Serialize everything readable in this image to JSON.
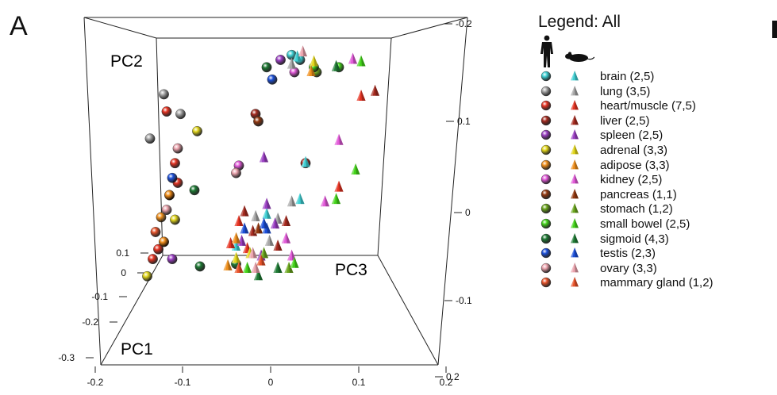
{
  "panel_letter": "A",
  "legend": {
    "title": "Legend: All",
    "human_icon": "human-silhouette-icon",
    "mouse_icon": "mouse-silhouette-icon",
    "entries": [
      {
        "label": "brain (2,5)",
        "color": "#3fd0d4"
      },
      {
        "label": "lung (3,5)",
        "color": "#a6a6a6"
      },
      {
        "label": "heart/muscle (7,5)",
        "color": "#e53322"
      },
      {
        "label": "liver (2,5)",
        "color": "#a52a1f"
      },
      {
        "label": "spleen (2,5)",
        "color": "#9b3fc4"
      },
      {
        "label": "adrenal (3,3)",
        "color": "#e2d61b"
      },
      {
        "label": "adipose (3,3)",
        "color": "#ef8f1c"
      },
      {
        "label": "kidney (2,5)",
        "color": "#e159d8"
      },
      {
        "label": "pancreas (1,1)",
        "color": "#93380f"
      },
      {
        "label": "stomach (1,2)",
        "color": "#6aa51c"
      },
      {
        "label": "small bowel (2,5)",
        "color": "#44d41a"
      },
      {
        "label": "sigmoid (4,3)",
        "color": "#1e7a34"
      },
      {
        "label": "testis (2,3)",
        "color": "#1c4fd9"
      },
      {
        "label": "ovary (3,3)",
        "color": "#eba3ad"
      },
      {
        "label": "mammary gland (1,2)",
        "color": "#e8532a"
      }
    ]
  },
  "chart_data": {
    "type": "scatter",
    "axis_labels": {
      "pc1": "PC1",
      "pc2": "PC2",
      "pc3": "PC3"
    },
    "ticks": {
      "bottom": [
        "-0.2",
        "-0.1",
        "0",
        "0.1",
        "0.2"
      ],
      "left": [
        "0.1",
        "0",
        "-0.1",
        "-0.2",
        "-0.3"
      ],
      "right": [
        "-0.2",
        "0.1",
        "0",
        "-0.1",
        "0.2"
      ]
    },
    "human_points": [
      {
        "tissue": 0,
        "pos": [
          0.55,
          0.03
        ]
      },
      {
        "tissue": 0,
        "pos": [
          0.58,
          0.05
        ]
      },
      {
        "tissue": 1,
        "pos": [
          0.09,
          0.19
        ]
      },
      {
        "tissue": 1,
        "pos": [
          0.15,
          0.27
        ]
      },
      {
        "tissue": 1,
        "pos": [
          0.04,
          0.37
        ]
      },
      {
        "tissue": 2,
        "pos": [
          0.05,
          0.86
        ]
      },
      {
        "tissue": 2,
        "pos": [
          0.07,
          0.82
        ]
      },
      {
        "tissue": 2,
        "pos": [
          0.09,
          0.79
        ]
      },
      {
        "tissue": 2,
        "pos": [
          0.11,
          0.6
        ]
      },
      {
        "tissue": 2,
        "pos": [
          0.13,
          0.47
        ]
      },
      {
        "tissue": 2,
        "pos": [
          0.1,
          0.26
        ]
      },
      {
        "tissue": 2,
        "pos": [
          0.14,
          0.55
        ]
      },
      {
        "tissue": 3,
        "pos": [
          0.42,
          0.27
        ]
      },
      {
        "tissue": 3,
        "pos": [
          0.6,
          0.47
        ]
      },
      {
        "tissue": 4,
        "pos": [
          0.51,
          0.05
        ]
      },
      {
        "tissue": 4,
        "pos": [
          0.12,
          0.86
        ]
      },
      {
        "tissue": 5,
        "pos": [
          0.13,
          0.7
        ]
      },
      {
        "tissue": 5,
        "pos": [
          0.21,
          0.34
        ]
      },
      {
        "tissue": 5,
        "pos": [
          0.03,
          0.93
        ]
      },
      {
        "tissue": 6,
        "pos": [
          0.09,
          0.79
        ]
      },
      {
        "tissue": 6,
        "pos": [
          0.11,
          0.6
        ]
      },
      {
        "tissue": 6,
        "pos": [
          0.08,
          0.69
        ]
      },
      {
        "tissue": 7,
        "pos": [
          0.56,
          0.1
        ]
      },
      {
        "tissue": 7,
        "pos": [
          0.36,
          0.48
        ]
      },
      {
        "tissue": 8,
        "pos": [
          0.43,
          0.3
        ]
      },
      {
        "tissue": 9,
        "pos": [
          0.64,
          0.1
        ]
      },
      {
        "tissue": 10,
        "pos": [
          0.63,
          0.08
        ]
      },
      {
        "tissue": 10,
        "pos": [
          0.72,
          0.08
        ]
      },
      {
        "tissue": 11,
        "pos": [
          0.46,
          0.08
        ]
      },
      {
        "tissue": 11,
        "pos": [
          0.2,
          0.58
        ]
      },
      {
        "tissue": 11,
        "pos": [
          0.22,
          0.89
        ]
      },
      {
        "tissue": 11,
        "pos": [
          0.35,
          0.88
        ]
      },
      {
        "tissue": 12,
        "pos": [
          0.48,
          0.13
        ]
      },
      {
        "tissue": 12,
        "pos": [
          0.12,
          0.53
        ]
      },
      {
        "tissue": 13,
        "pos": [
          0.1,
          0.66
        ]
      },
      {
        "tissue": 13,
        "pos": [
          0.14,
          0.41
        ]
      },
      {
        "tissue": 13,
        "pos": [
          0.35,
          0.51
        ]
      },
      {
        "tissue": 14,
        "pos": [
          0.06,
          0.75
        ]
      }
    ],
    "mouse_points": [
      {
        "tissue": 0,
        "pos": [
          0.57,
          0.04
        ]
      },
      {
        "tissue": 0,
        "pos": [
          0.6,
          0.47
        ]
      },
      {
        "tissue": 0,
        "pos": [
          0.58,
          0.62
        ]
      },
      {
        "tissue": 0,
        "pos": [
          0.46,
          0.68
        ]
      },
      {
        "tissue": 0,
        "pos": [
          0.35,
          0.81
        ]
      },
      {
        "tissue": 1,
        "pos": [
          0.55,
          0.07
        ]
      },
      {
        "tissue": 1,
        "pos": [
          0.55,
          0.63
        ]
      },
      {
        "tissue": 1,
        "pos": [
          0.47,
          0.79
        ]
      },
      {
        "tissue": 1,
        "pos": [
          0.5,
          0.7
        ]
      },
      {
        "tissue": 1,
        "pos": [
          0.42,
          0.69
        ]
      },
      {
        "tissue": 2,
        "pos": [
          0.8,
          0.2
        ]
      },
      {
        "tissue": 2,
        "pos": [
          0.72,
          0.57
        ]
      },
      {
        "tissue": 2,
        "pos": [
          0.36,
          0.71
        ]
      },
      {
        "tissue": 2,
        "pos": [
          0.33,
          0.8
        ]
      },
      {
        "tissue": 2,
        "pos": [
          0.39,
          0.82
        ]
      },
      {
        "tissue": 3,
        "pos": [
          0.85,
          0.18
        ]
      },
      {
        "tissue": 3,
        "pos": [
          0.38,
          0.67
        ]
      },
      {
        "tissue": 3,
        "pos": [
          0.53,
          0.71
        ]
      },
      {
        "tissue": 3,
        "pos": [
          0.5,
          0.81
        ]
      },
      {
        "tissue": 3,
        "pos": [
          0.41,
          0.75
        ]
      },
      {
        "tissue": 4,
        "pos": [
          0.45,
          0.45
        ]
      },
      {
        "tissue": 4,
        "pos": [
          0.49,
          0.72
        ]
      },
      {
        "tissue": 4,
        "pos": [
          0.44,
          0.85
        ]
      },
      {
        "tissue": 4,
        "pos": [
          0.37,
          0.79
        ]
      },
      {
        "tissue": 4,
        "pos": [
          0.46,
          0.64
        ]
      },
      {
        "tissue": 5,
        "pos": [
          0.63,
          0.06
        ]
      },
      {
        "tissue": 5,
        "pos": [
          0.4,
          0.84
        ]
      },
      {
        "tissue": 5,
        "pos": [
          0.35,
          0.86
        ]
      },
      {
        "tissue": 6,
        "pos": [
          0.62,
          0.1
        ]
      },
      {
        "tissue": 6,
        "pos": [
          0.35,
          0.78
        ]
      },
      {
        "tissue": 6,
        "pos": [
          0.32,
          0.89
        ]
      },
      {
        "tissue": 7,
        "pos": [
          0.77,
          0.05
        ]
      },
      {
        "tissue": 7,
        "pos": [
          0.72,
          0.38
        ]
      },
      {
        "tissue": 7,
        "pos": [
          0.67,
          0.63
        ]
      },
      {
        "tissue": 7,
        "pos": [
          0.55,
          0.85
        ]
      },
      {
        "tissue": 7,
        "pos": [
          0.53,
          0.78
        ]
      },
      {
        "tissue": 8,
        "pos": [
          0.43,
          0.74
        ]
      },
      {
        "tissue": 9,
        "pos": [
          0.45,
          0.84
        ]
      },
      {
        "tissue": 9,
        "pos": [
          0.54,
          0.9
        ]
      },
      {
        "tissue": 10,
        "pos": [
          0.8,
          0.06
        ]
      },
      {
        "tissue": 10,
        "pos": [
          0.78,
          0.5
        ]
      },
      {
        "tissue": 10,
        "pos": [
          0.71,
          0.62
        ]
      },
      {
        "tissue": 10,
        "pos": [
          0.56,
          0.88
        ]
      },
      {
        "tissue": 10,
        "pos": [
          0.39,
          0.9
        ]
      },
      {
        "tissue": 11,
        "pos": [
          0.71,
          0.08
        ]
      },
      {
        "tissue": 11,
        "pos": [
          0.43,
          0.93
        ]
      },
      {
        "tissue": 11,
        "pos": [
          0.5,
          0.9
        ]
      },
      {
        "tissue": 12,
        "pos": [
          0.46,
          0.74
        ]
      },
      {
        "tissue": 12,
        "pos": [
          0.38,
          0.74
        ]
      },
      {
        "tissue": 12,
        "pos": [
          0.45,
          0.72
        ]
      },
      {
        "tissue": 13,
        "pos": [
          0.59,
          0.02
        ]
      },
      {
        "tissue": 13,
        "pos": [
          0.41,
          0.84
        ]
      },
      {
        "tissue": 13,
        "pos": [
          0.42,
          0.9
        ]
      },
      {
        "tissue": 14,
        "pos": [
          0.36,
          0.9
        ]
      },
      {
        "tissue": 14,
        "pos": [
          0.44,
          0.87
        ]
      }
    ]
  }
}
